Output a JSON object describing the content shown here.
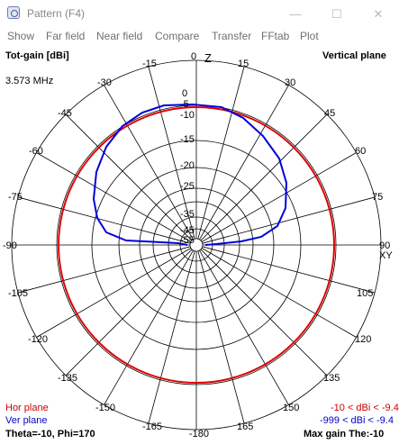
{
  "window": {
    "title": "Pattern   (F4)",
    "minimize_glyph": "—",
    "maximize_glyph": "☐",
    "close_glyph": "✕"
  },
  "menu": [
    "Show",
    "Far field",
    "Near field",
    "Compare",
    "Transfer",
    "FFtab",
    "Plot"
  ],
  "plot": {
    "header_left": "Tot-gain [dBi]",
    "header_right": "Vertical plane",
    "frequency": "3.573 MHz",
    "top_axis_label": "Z",
    "right_axis_label": "XY",
    "ring_labels": [
      "0",
      "-5",
      "-10",
      "-15",
      "-20",
      "-25",
      "-35",
      "-45",
      "-55"
    ],
    "angle_labels_top": {
      "left": [
        "-15",
        "-30",
        "-45",
        "-60",
        "-75",
        "-90"
      ],
      "right": [
        "15",
        "30",
        "45",
        "60",
        "75",
        "90"
      ],
      "zero": "0"
    },
    "angle_labels_bottom": {
      "left": [
        "-105",
        "-120",
        "-135",
        "-150",
        "-165"
      ],
      "right": [
        "105",
        "120",
        "135",
        "150",
        "165"
      ],
      "bottom": "-180"
    },
    "legend": [
      {
        "name": "Hor plane",
        "range": "-10 < dBi < -9.4",
        "color": "#cc0000"
      },
      {
        "name": "Ver plane",
        "range": "-999 < dBi < -9.4",
        "color": "#0000cc"
      }
    ],
    "footer_left": "Theta=-10, Phi=170",
    "footer_right": "Max gain The:-10",
    "colors": {
      "grid": "#000000",
      "hor": "#dd0000",
      "ver": "#0000dd"
    }
  }
}
